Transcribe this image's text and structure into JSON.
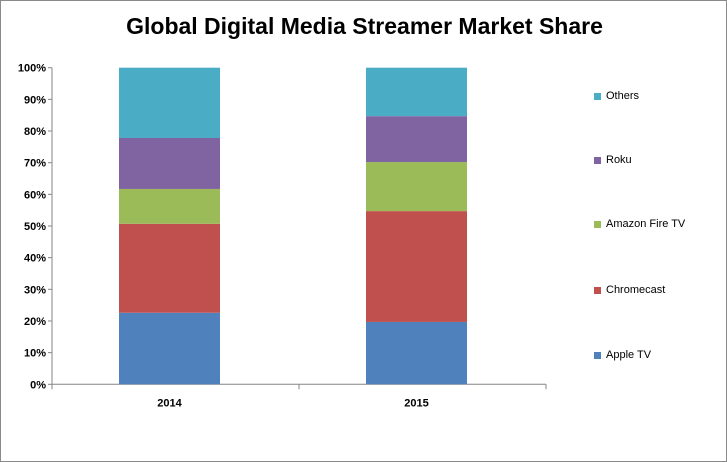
{
  "chart_data": {
    "type": "bar",
    "stacked": true,
    "percent": true,
    "title": "Global Digital Media Streamer Market Share",
    "xlabel": "",
    "ylabel": "",
    "ylim": [
      0,
      100
    ],
    "yticks": [
      "0%",
      "10%",
      "20%",
      "30%",
      "40%",
      "50%",
      "60%",
      "70%",
      "80%",
      "90%",
      "100%"
    ],
    "categories": [
      "2014",
      "2015"
    ],
    "legend_position": "right",
    "grid": false,
    "series": [
      {
        "name": "Apple TV",
        "color": "#4f81bd",
        "values": [
          22.6,
          19.7
        ]
      },
      {
        "name": "Chromecast",
        "color": "#c0504d",
        "values": [
          28.1,
          35.0
        ]
      },
      {
        "name": "Amazon Fire TV",
        "color": "#9bbb59",
        "values": [
          11.0,
          15.5
        ]
      },
      {
        "name": "Roku",
        "color": "#8064a2",
        "values": [
          16.1,
          14.5
        ]
      },
      {
        "name": "Others",
        "color": "#4bacc6",
        "values": [
          22.2,
          15.3
        ]
      }
    ]
  }
}
